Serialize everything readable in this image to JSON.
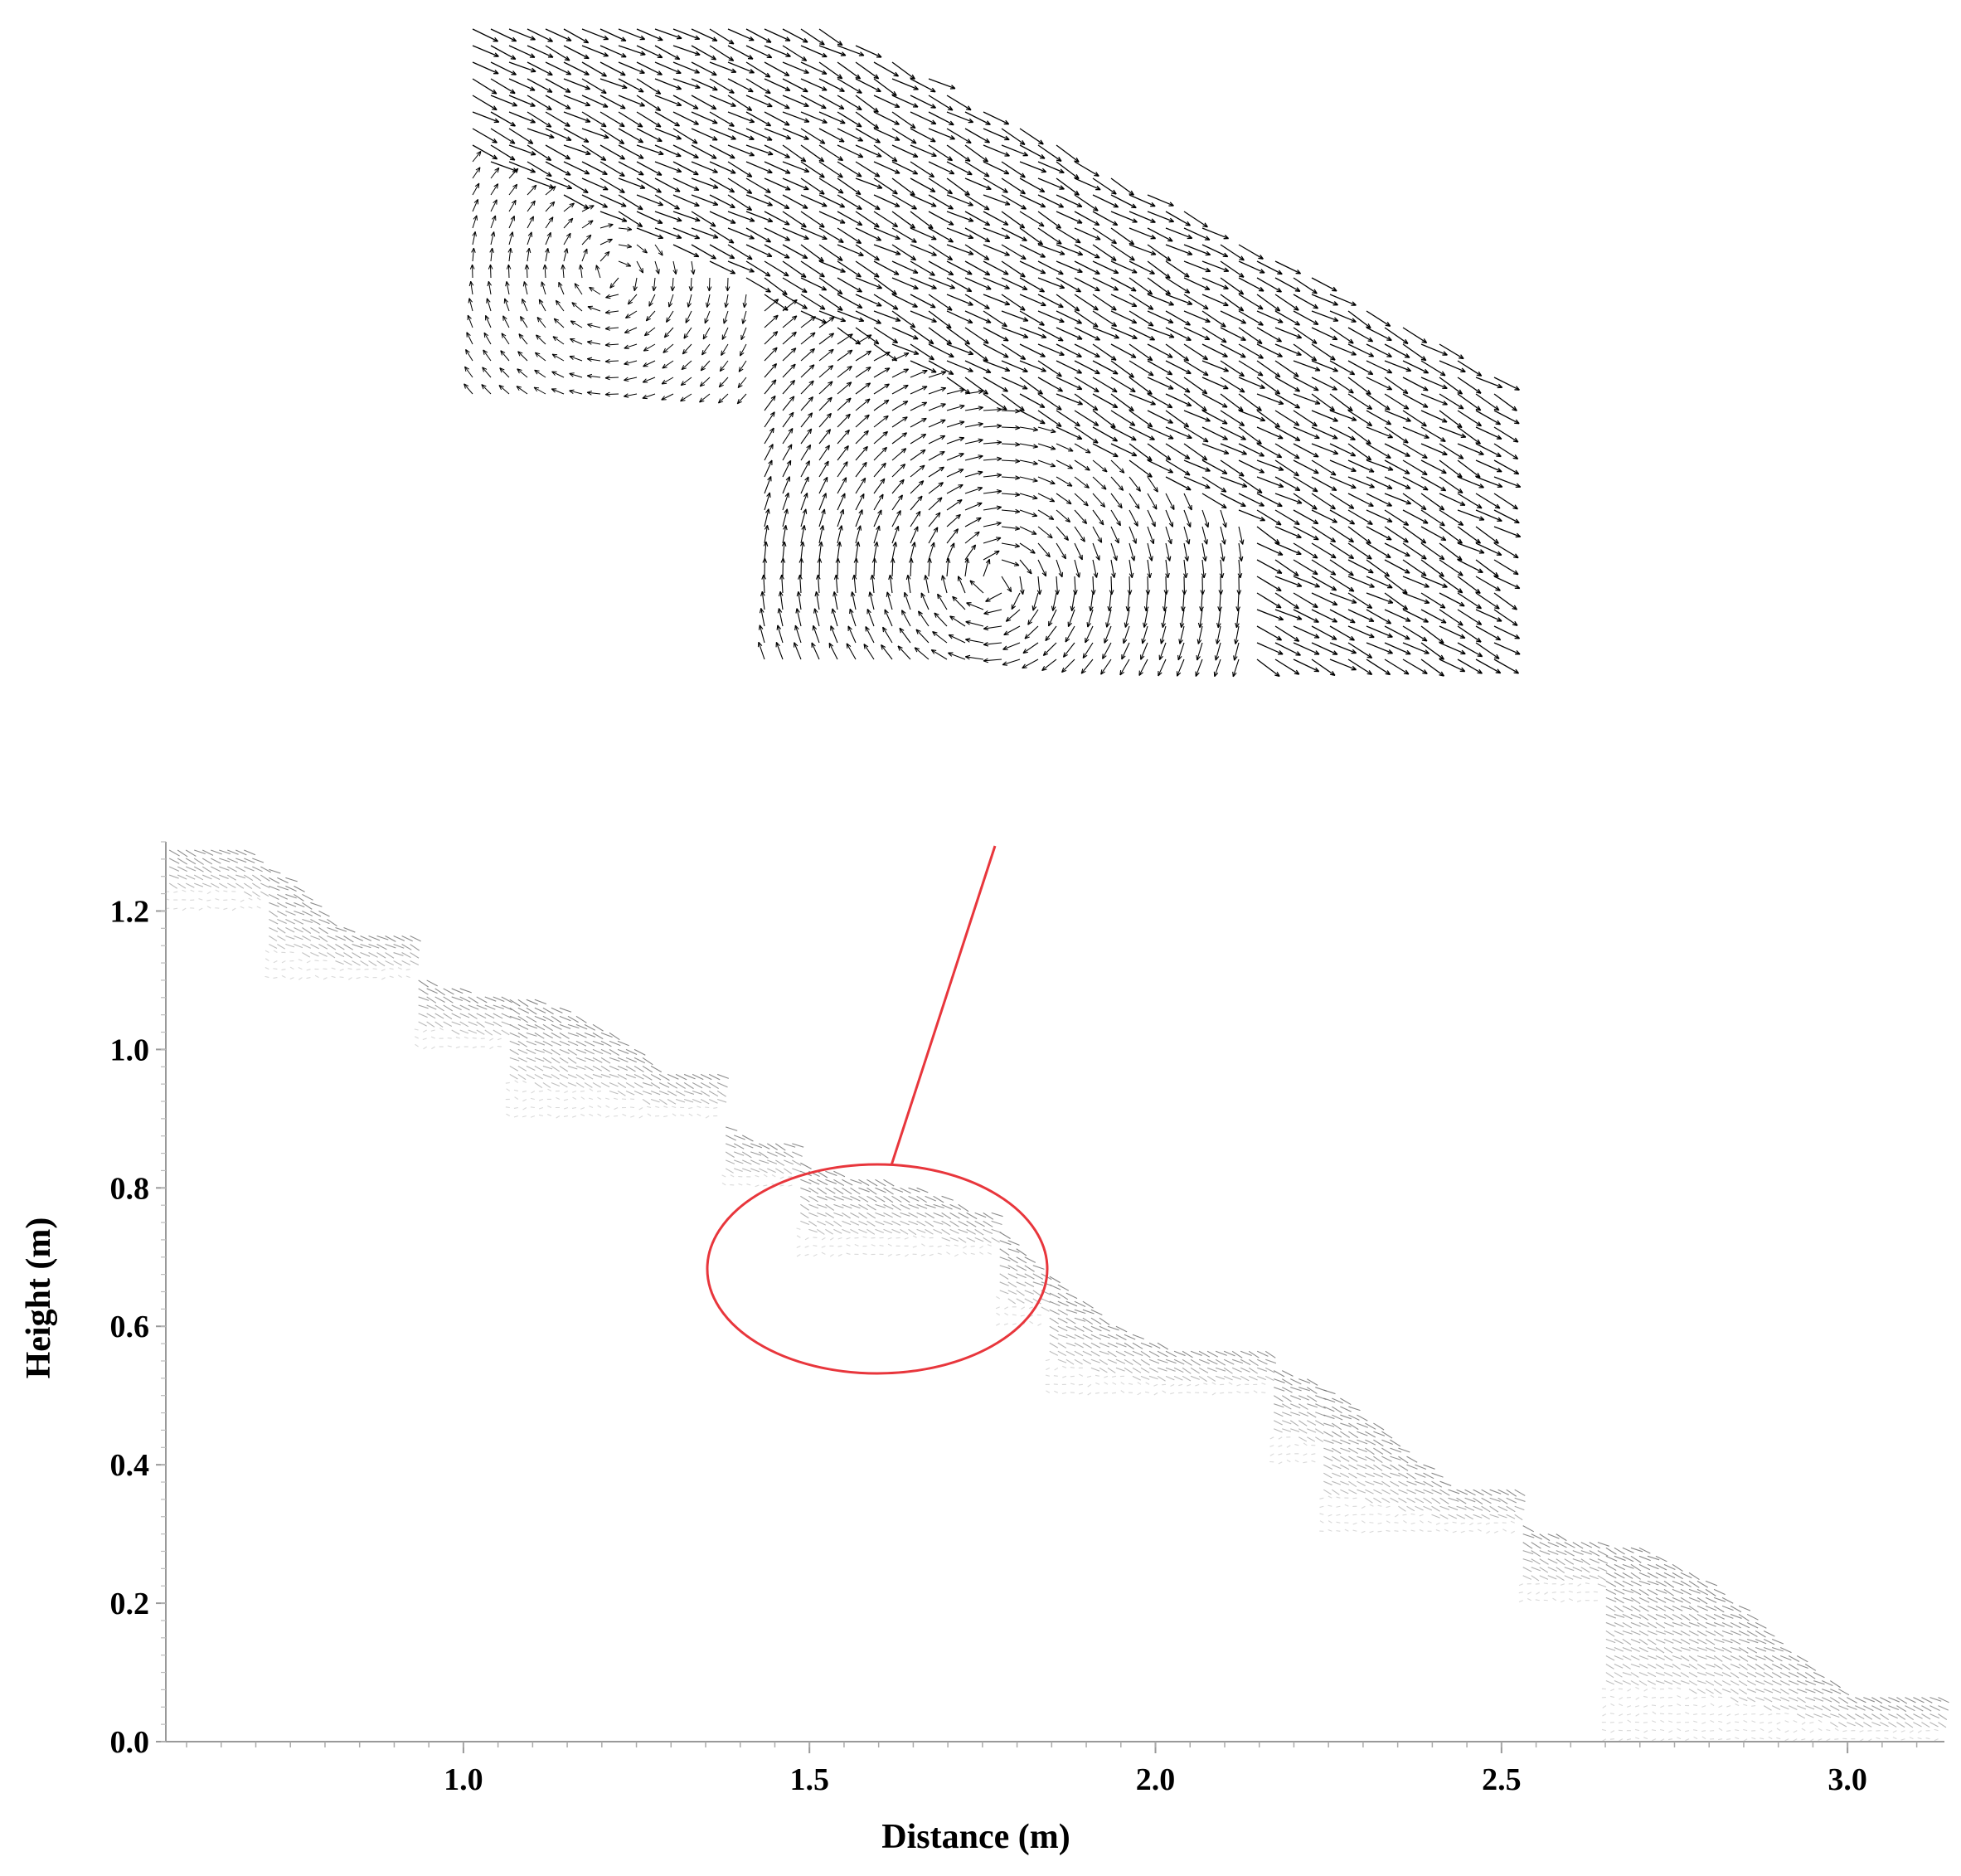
{
  "chart_data": [
    {
      "type": "vector-field",
      "panel": "inset-zoom",
      "description_visible": "velocity vectors over a single step showing main jet and recirculation vortex",
      "arrow_color": "#000000"
    },
    {
      "type": "vector-field",
      "panel": "main",
      "xlabel": "Distance (m)",
      "ylabel": "Height (m)",
      "xlim": [
        0.57,
        3.14
      ],
      "ylim": [
        0.0,
        1.3
      ],
      "xticks": [
        "1.0",
        "1.5",
        "2.0",
        "2.5",
        "3.0"
      ],
      "xtick_values": [
        1.0,
        1.5,
        2.0,
        2.5,
        3.0
      ],
      "yticks": [
        "0.0",
        "0.2",
        "0.4",
        "0.6",
        "0.8",
        "1.0",
        "1.2"
      ],
      "ytick_values": [
        0.0,
        0.2,
        0.4,
        0.6,
        0.8,
        1.0,
        1.2
      ],
      "steps": [
        {
          "x_start": 0.57,
          "x_end": 0.71,
          "height": 1.2
        },
        {
          "x_start": 0.71,
          "x_end": 0.93,
          "height": 1.1
        },
        {
          "x_start": 0.93,
          "x_end": 1.06,
          "height": 1.0
        },
        {
          "x_start": 1.06,
          "x_end": 1.37,
          "height": 0.9
        },
        {
          "x_start": 1.37,
          "x_end": 1.48,
          "height": 0.8
        },
        {
          "x_start": 1.48,
          "x_end": 1.77,
          "height": 0.7
        },
        {
          "x_start": 1.77,
          "x_end": 1.84,
          "height": 0.6
        },
        {
          "x_start": 1.84,
          "x_end": 2.17,
          "height": 0.5
        },
        {
          "x_start": 2.17,
          "x_end": 2.24,
          "height": 0.4
        },
        {
          "x_start": 2.24,
          "x_end": 2.53,
          "height": 0.3
        },
        {
          "x_start": 2.53,
          "x_end": 2.64,
          "height": 0.2
        },
        {
          "x_start": 2.64,
          "x_end": 3.14,
          "height": 0.0
        }
      ],
      "highlight": {
        "shape": "ellipse",
        "center": [
          1.6,
          0.7
        ],
        "color": "#e8363c"
      },
      "arrow_color": "#666666"
    }
  ]
}
